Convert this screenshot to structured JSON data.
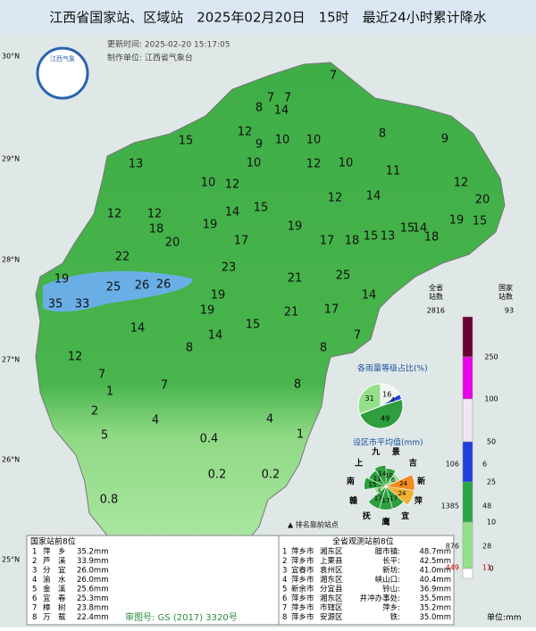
{
  "header": {
    "title": "江西省国家站、区域站　2025年02月20日　15时　最近24小时累计降水",
    "update_time": "更新时间: 2025-02-20 15:17:05",
    "producer": "制作单位: 江西省气象台",
    "logo": "江西气象"
  },
  "lat_labels": [
    "30°N",
    "29°N",
    "28°N",
    "27°N",
    "26°N",
    "25°N"
  ],
  "map_values": [
    7,
    7,
    7,
    8,
    14,
    12,
    10,
    9,
    10,
    8,
    15,
    9,
    13,
    10,
    12,
    10,
    11,
    12,
    10,
    12,
    20,
    14,
    12,
    12,
    12,
    14,
    15,
    19,
    19,
    15,
    18,
    19,
    17,
    17,
    18,
    15,
    13,
    15,
    14,
    18,
    22,
    20,
    23,
    21,
    25,
    19,
    25,
    26,
    26,
    35,
    33,
    14,
    19,
    21,
    17,
    14,
    19,
    15,
    14,
    8,
    7,
    8,
    12,
    7,
    7,
    1,
    8,
    2,
    4,
    4,
    1,
    5,
    0.4,
    0.2,
    0.2,
    0.8
  ],
  "legend": {
    "header_total": "全省\n站数",
    "header_national": "国家\n站数",
    "total_top": 2816,
    "national_top": 93,
    "levels": [
      250,
      100,
      50,
      25,
      10,
      0
    ],
    "colors": [
      "#6b0036",
      "#e800e8",
      "#f3e6f3",
      "#1f3ee0",
      "#28a745",
      "#94e08a",
      "#ffffff"
    ],
    "total_counts": [
      106,
      1385,
      876,
      449
    ],
    "national_counts": [
      6,
      48,
      28,
      11
    ],
    "unit": "单位:mm"
  },
  "pie_share": {
    "title": "各雨量等级占比(%)",
    "values": [
      16,
      4,
      49,
      31
    ],
    "colors": [
      "#f1f5f1",
      "#1f3ee0",
      "#2e9e3e",
      "#94e08a"
    ]
  },
  "city_avg": {
    "title": "设区市平均值(mm)",
    "cities": [
      "景",
      "吉",
      "新",
      "萍",
      "宜",
      "鹰",
      "抚",
      "赣",
      "南",
      "上",
      "九"
    ],
    "values": [
      10,
      6,
      24,
      24,
      17,
      17,
      17,
      1,
      15,
      11,
      14
    ]
  },
  "marker_note": "▲ 排名靠前站点",
  "national_top8": {
    "title": "国家站前8位",
    "rows": [
      [
        "1",
        "萍　乡",
        "35.2mm"
      ],
      [
        "2",
        "芦　溪",
        "33.9mm"
      ],
      [
        "3",
        "分　宜",
        "26.0mm"
      ],
      [
        "4",
        "渝　水",
        "26.0mm"
      ],
      [
        "5",
        "金　溪",
        "25.6mm"
      ],
      [
        "6",
        "宜　春",
        "25.3mm"
      ],
      [
        "7",
        "樟　树",
        "23.8mm"
      ],
      [
        "8",
        "万　载",
        "22.4mm"
      ]
    ]
  },
  "province_top8": {
    "title": "全省观测站前8位",
    "rows": [
      [
        "1",
        "萍乡市",
        "湘东区",
        "腊市镇:",
        "48.7mm"
      ],
      [
        "2",
        "萍乡市",
        "上栗县",
        "长平:",
        "42.5mm"
      ],
      [
        "3",
        "宜春市",
        "袁州区",
        "新坊:",
        "41.0mm"
      ],
      [
        "4",
        "萍乡市",
        "湘东区",
        "峡山口:",
        "40.4mm"
      ],
      [
        "5",
        "新余市",
        "分宜县",
        "铃山:",
        "36.9mm"
      ],
      [
        "6",
        "萍乡市",
        "湘东区",
        "井冲办事处:",
        "35.5mm"
      ],
      [
        "7",
        "萍乡市",
        "市辖区",
        "萍乡:",
        "35.2mm"
      ],
      [
        "8",
        "萍乡市",
        "安源区",
        "铁:",
        "35.0mm"
      ]
    ]
  },
  "approval": "审图号: GS (2017) 3320号"
}
